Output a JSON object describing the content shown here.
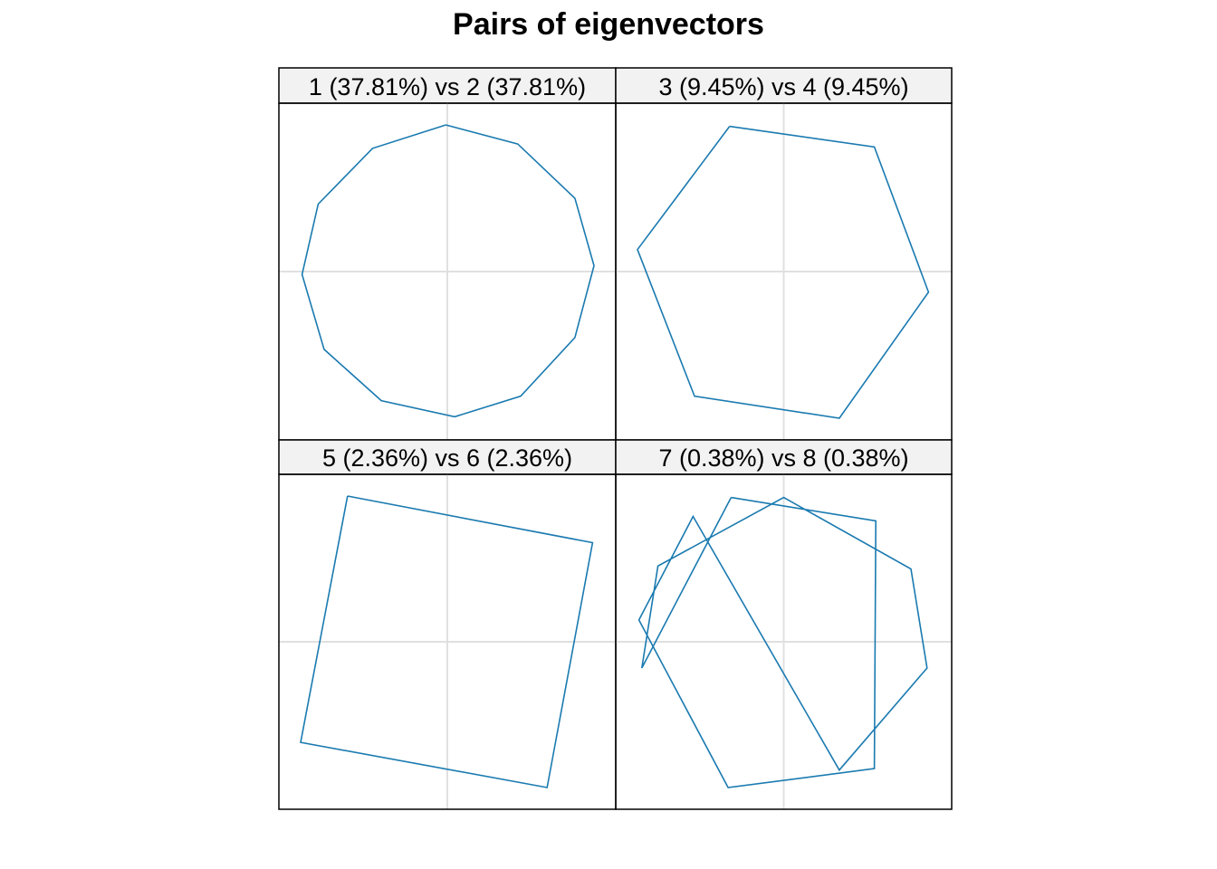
{
  "title": "Pairs of eigenvectors",
  "colors": {
    "line": "#1a7ab0",
    "grid": "#e0e0e0",
    "strip_bg": "#f2f2f2",
    "border": "#000000"
  },
  "chart_data": {
    "type": "line",
    "title": "Pairs of eigenvectors",
    "grid": true,
    "xlim": [
      -1,
      1
    ],
    "ylim": [
      -1,
      1
    ],
    "panels": [
      {
        "label": "1 (37.81%) vs 2 (37.81%)",
        "pair": [
          1,
          2
        ],
        "x": [
          -0.01,
          0.48,
          0.87,
          1.0,
          0.87,
          0.5,
          0.05,
          -0.45,
          -0.84,
          -0.99,
          -0.88,
          -0.51,
          -0.01
        ],
        "y": [
          1.0,
          0.87,
          0.5,
          0.04,
          -0.45,
          -0.85,
          -0.99,
          -0.88,
          -0.53,
          -0.02,
          0.46,
          0.84,
          1.0
        ]
      },
      {
        "label": "3 (9.45%) vs 4 (9.45%)",
        "pair": [
          3,
          4
        ],
        "x": [
          -0.37,
          0.62,
          0.99,
          0.38,
          -0.61,
          -1.0,
          -0.37
        ],
        "y": [
          0.99,
          0.85,
          -0.14,
          -1.0,
          -0.85,
          0.15,
          0.99
        ]
      },
      {
        "label": "5 (2.36%) vs 6 (2.36%)",
        "pair": [
          5,
          6
        ],
        "x": [
          -0.68,
          0.99,
          0.68,
          -1.0,
          -0.68
        ],
        "y": [
          1.0,
          0.68,
          -1.0,
          -0.69,
          1.0
        ]
      },
      {
        "label": "7 (0.38%) vs 8 (0.38%)",
        "pair": [
          7,
          8
        ],
        "x": [
          -0.36,
          0.63,
          0.62,
          -0.38,
          -0.99,
          -0.62,
          0.38,
          0.98,
          0.87,
          0.0,
          -0.86,
          -0.97,
          -0.36
        ],
        "y": [
          0.99,
          0.83,
          -0.87,
          -1.0,
          0.15,
          0.86,
          -0.88,
          -0.18,
          0.5,
          0.99,
          0.52,
          -0.18,
          0.99
        ]
      }
    ]
  }
}
